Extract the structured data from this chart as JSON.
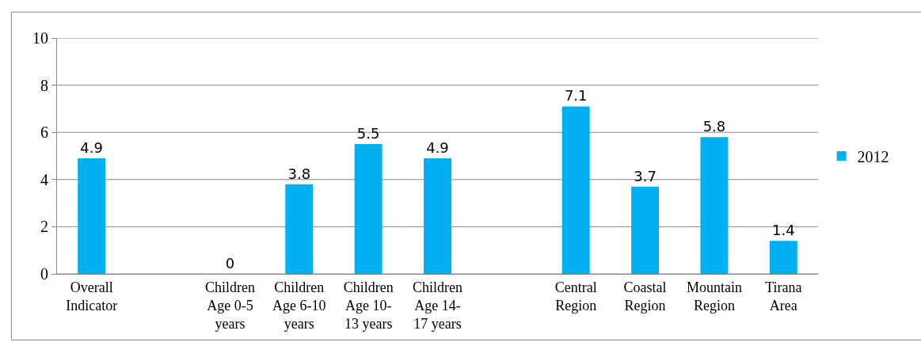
{
  "chart_data": {
    "type": "bar",
    "categories": [
      "Overall Indicator",
      null,
      "Children Age 0-5 years",
      "Children Age 6-10 years",
      "Children Age 10-13 years",
      "Children Age 14-17 years",
      null,
      "Central Region",
      "Coastal Region",
      "Mountain Region",
      "Tirana Area"
    ],
    "series": [
      {
        "name": "2012",
        "color": "#00b0f0",
        "values": [
          4.9,
          null,
          0,
          3.8,
          5.5,
          4.9,
          null,
          7.1,
          3.7,
          5.8,
          1.4
        ]
      }
    ],
    "ylim": [
      0,
      10
    ],
    "yticks": [
      0,
      2,
      4,
      6,
      8,
      10
    ],
    "grid": "y",
    "legend": "right",
    "data_labels": true
  }
}
